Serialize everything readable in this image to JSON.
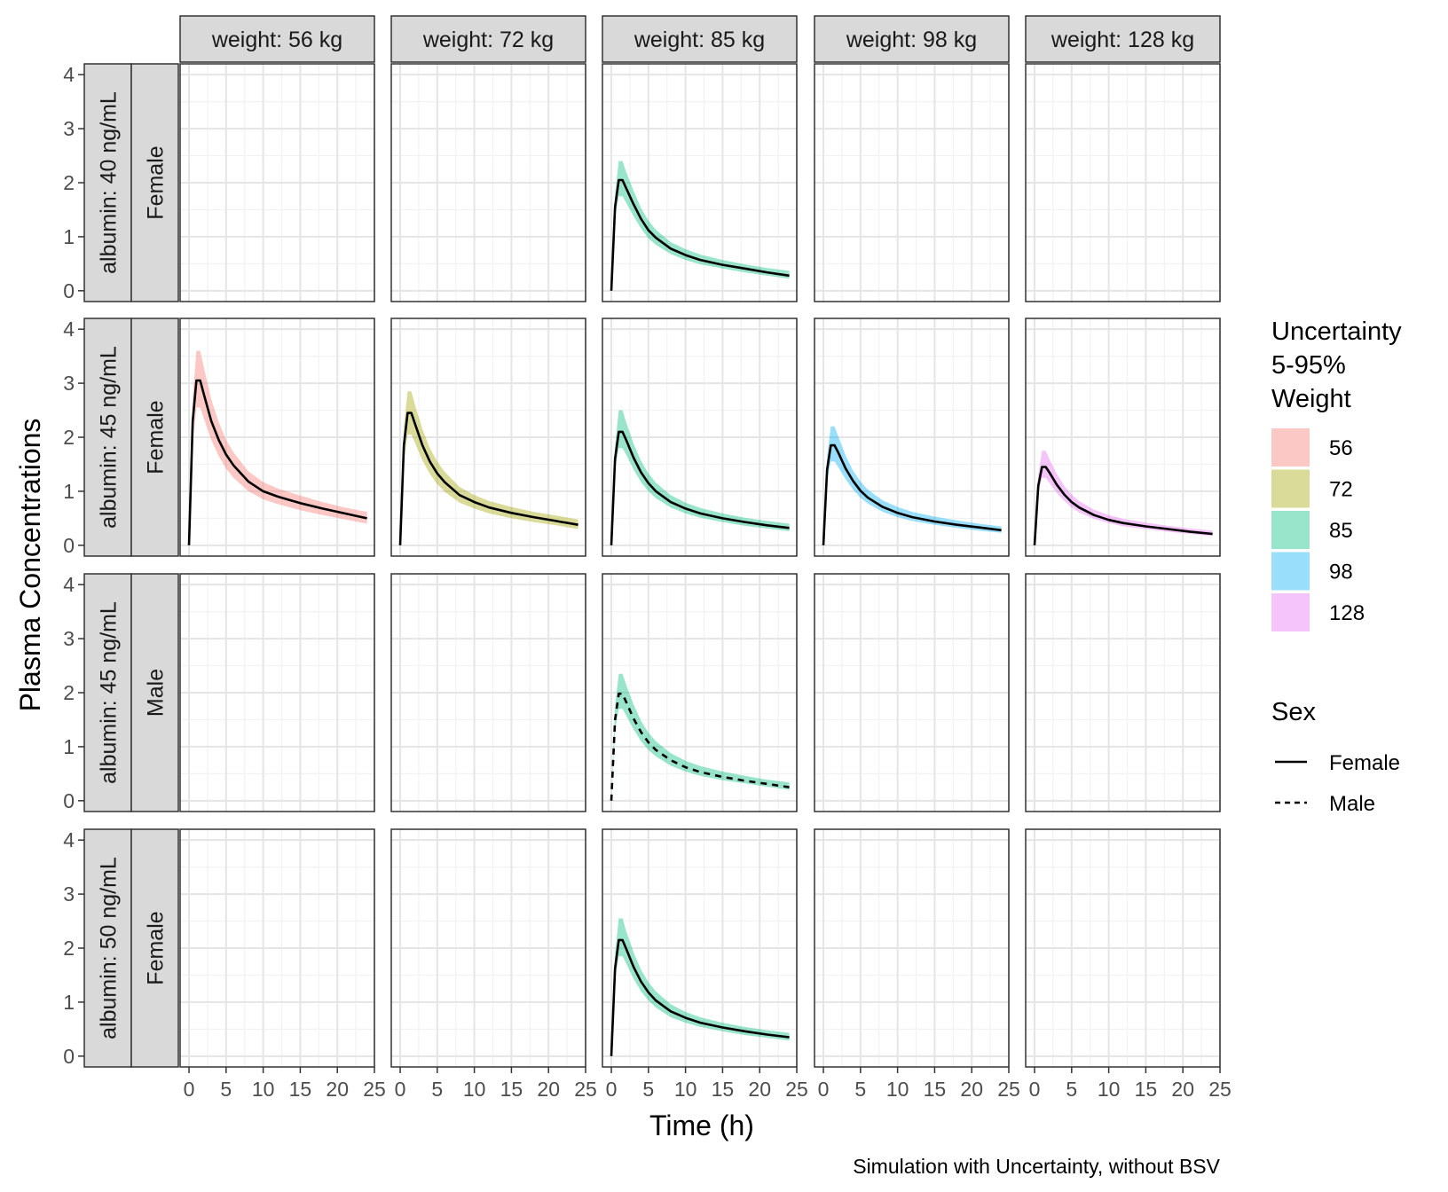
{
  "chart_data": {
    "type": "line",
    "xlabel": "Time (h)",
    "ylabel": "Plasma Concentrations",
    "caption": "Simulation with Uncertainty, without BSV",
    "xlim": [
      -1.2,
      25
    ],
    "ylim": [
      -0.2,
      4.2
    ],
    "x_ticks": [
      0,
      5,
      10,
      15,
      20,
      25
    ],
    "y_ticks": [
      0,
      1,
      2,
      3,
      4
    ],
    "grid": true,
    "facet_columns": [
      "weight: 56 kg",
      "weight: 72 kg",
      "weight: 85 kg",
      "weight: 98 kg",
      "weight: 128 kg"
    ],
    "facet_rows": [
      {
        "albumin": "albumin: 40 ng/mL",
        "sex": "Female"
      },
      {
        "albumin": "albumin: 45 ng/mL",
        "sex": "Female"
      },
      {
        "albumin": "albumin: 45 ng/mL",
        "sex": "Male"
      },
      {
        "albumin": "albumin: 50 ng/mL",
        "sex": "Female"
      }
    ],
    "legend_fill": {
      "title": [
        "Uncertainty",
        "5-95%",
        "Weight"
      ],
      "entries": [
        {
          "label": "56",
          "color": "#F8766D"
        },
        {
          "label": "72",
          "color": "#A3A500"
        },
        {
          "label": "85",
          "color": "#00BF7D"
        },
        {
          "label": "98",
          "color": "#00B0F6"
        },
        {
          "label": "128",
          "color": "#E76BF3"
        }
      ]
    },
    "legend_linetype": {
      "title": "Sex",
      "entries": [
        {
          "label": "Female",
          "linetype": "solid"
        },
        {
          "label": "Male",
          "linetype": "dashed"
        }
      ]
    },
    "legend_placement": "right",
    "series": [
      {
        "row": 0,
        "col": 2,
        "weight": "85",
        "sex": "Female",
        "x": [
          0,
          0.5,
          1,
          1.5,
          2,
          3,
          4,
          5,
          6,
          8,
          10,
          12,
          15,
          18,
          21,
          24
        ],
        "y": [
          0,
          1.55,
          2.05,
          2.05,
          1.9,
          1.6,
          1.33,
          1.12,
          0.98,
          0.78,
          0.66,
          0.57,
          0.48,
          0.41,
          0.34,
          0.28
        ],
        "lower": [
          0,
          1.35,
          1.75,
          1.75,
          1.63,
          1.38,
          1.15,
          0.97,
          0.85,
          0.68,
          0.57,
          0.49,
          0.41,
          0.34,
          0.28,
          0.22
        ],
        "upper": [
          0,
          1.8,
          2.4,
          2.4,
          2.2,
          1.85,
          1.53,
          1.3,
          1.13,
          0.9,
          0.77,
          0.67,
          0.57,
          0.49,
          0.42,
          0.37
        ]
      },
      {
        "row": 1,
        "col": 0,
        "weight": "56",
        "sex": "Female",
        "x": [
          0,
          0.5,
          1,
          1.5,
          2,
          3,
          4,
          5,
          6,
          8,
          10,
          12,
          15,
          18,
          21,
          24
        ],
        "y": [
          0,
          2.3,
          3.05,
          3.05,
          2.8,
          2.3,
          1.95,
          1.68,
          1.48,
          1.18,
          1.0,
          0.9,
          0.78,
          0.68,
          0.59,
          0.5
        ],
        "lower": [
          0,
          1.9,
          2.55,
          2.55,
          2.35,
          1.95,
          1.65,
          1.42,
          1.25,
          1.0,
          0.85,
          0.76,
          0.65,
          0.56,
          0.48,
          0.4
        ],
        "upper": [
          0,
          2.75,
          3.6,
          3.6,
          3.3,
          2.7,
          2.28,
          1.95,
          1.72,
          1.37,
          1.17,
          1.05,
          0.92,
          0.8,
          0.7,
          0.62
        ]
      },
      {
        "row": 1,
        "col": 1,
        "weight": "72",
        "sex": "Female",
        "x": [
          0,
          0.5,
          1,
          1.5,
          2,
          3,
          4,
          5,
          6,
          8,
          10,
          12,
          15,
          18,
          21,
          24
        ],
        "y": [
          0,
          1.85,
          2.45,
          2.45,
          2.25,
          1.85,
          1.55,
          1.33,
          1.17,
          0.93,
          0.8,
          0.7,
          0.6,
          0.52,
          0.45,
          0.38
        ],
        "lower": [
          0,
          1.55,
          2.05,
          2.05,
          1.9,
          1.57,
          1.32,
          1.13,
          0.99,
          0.79,
          0.68,
          0.59,
          0.5,
          0.43,
          0.37,
          0.3
        ],
        "upper": [
          0,
          2.2,
          2.85,
          2.85,
          2.6,
          2.15,
          1.8,
          1.55,
          1.36,
          1.08,
          0.93,
          0.82,
          0.71,
          0.62,
          0.55,
          0.48
        ]
      },
      {
        "row": 1,
        "col": 2,
        "weight": "85",
        "sex": "Female",
        "x": [
          0,
          0.5,
          1,
          1.5,
          2,
          3,
          4,
          5,
          6,
          8,
          10,
          12,
          15,
          18,
          21,
          24
        ],
        "y": [
          0,
          1.6,
          2.1,
          2.1,
          1.95,
          1.62,
          1.35,
          1.15,
          1.0,
          0.8,
          0.68,
          0.59,
          0.5,
          0.43,
          0.37,
          0.32
        ],
        "lower": [
          0,
          1.4,
          1.8,
          1.8,
          1.68,
          1.4,
          1.17,
          1.0,
          0.87,
          0.7,
          0.59,
          0.51,
          0.43,
          0.36,
          0.31,
          0.26
        ],
        "upper": [
          0,
          1.85,
          2.5,
          2.5,
          2.28,
          1.88,
          1.56,
          1.33,
          1.16,
          0.93,
          0.79,
          0.69,
          0.59,
          0.51,
          0.45,
          0.4
        ]
      },
      {
        "row": 1,
        "col": 3,
        "weight": "98",
        "sex": "Female",
        "x": [
          0,
          0.5,
          1,
          1.5,
          2,
          3,
          4,
          5,
          6,
          8,
          10,
          12,
          15,
          18,
          21,
          24
        ],
        "y": [
          0,
          1.4,
          1.85,
          1.85,
          1.72,
          1.42,
          1.19,
          1.01,
          0.88,
          0.71,
          0.6,
          0.52,
          0.44,
          0.38,
          0.33,
          0.28
        ],
        "lower": [
          0,
          1.2,
          1.55,
          1.55,
          1.45,
          1.22,
          1.03,
          0.88,
          0.77,
          0.62,
          0.52,
          0.45,
          0.38,
          0.32,
          0.27,
          0.23
        ],
        "upper": [
          0,
          1.65,
          2.2,
          2.2,
          2.02,
          1.66,
          1.38,
          1.18,
          1.03,
          0.83,
          0.71,
          0.62,
          0.53,
          0.46,
          0.4,
          0.35
        ]
      },
      {
        "row": 1,
        "col": 4,
        "weight": "128",
        "sex": "Female",
        "x": [
          0,
          0.5,
          1,
          1.5,
          2,
          3,
          4,
          5,
          6,
          8,
          10,
          12,
          15,
          18,
          21,
          24
        ],
        "y": [
          0,
          1.1,
          1.45,
          1.45,
          1.35,
          1.12,
          0.94,
          0.8,
          0.7,
          0.56,
          0.47,
          0.41,
          0.35,
          0.3,
          0.25,
          0.21
        ],
        "lower": [
          0,
          0.95,
          1.25,
          1.25,
          1.16,
          0.97,
          0.82,
          0.7,
          0.61,
          0.49,
          0.41,
          0.35,
          0.3,
          0.25,
          0.21,
          0.17
        ],
        "upper": [
          0,
          1.3,
          1.75,
          1.75,
          1.6,
          1.32,
          1.1,
          0.94,
          0.82,
          0.66,
          0.56,
          0.49,
          0.42,
          0.36,
          0.31,
          0.27
        ]
      },
      {
        "row": 2,
        "col": 2,
        "weight": "85",
        "sex": "Male",
        "x": [
          0,
          0.5,
          1,
          1.5,
          2,
          3,
          4,
          5,
          6,
          8,
          10,
          12,
          15,
          18,
          21,
          24
        ],
        "y": [
          0,
          1.5,
          1.98,
          1.98,
          1.83,
          1.52,
          1.27,
          1.08,
          0.94,
          0.75,
          0.62,
          0.53,
          0.44,
          0.37,
          0.31,
          0.25
        ],
        "lower": [
          0,
          1.3,
          1.7,
          1.7,
          1.58,
          1.32,
          1.1,
          0.94,
          0.82,
          0.65,
          0.54,
          0.46,
          0.38,
          0.32,
          0.26,
          0.2
        ],
        "upper": [
          0,
          1.75,
          2.35,
          2.35,
          2.15,
          1.78,
          1.48,
          1.26,
          1.1,
          0.88,
          0.74,
          0.64,
          0.54,
          0.46,
          0.39,
          0.34
        ]
      },
      {
        "row": 3,
        "col": 2,
        "weight": "85",
        "sex": "Female",
        "x": [
          0,
          0.5,
          1,
          1.5,
          2,
          3,
          4,
          5,
          6,
          8,
          10,
          12,
          15,
          18,
          21,
          24
        ],
        "y": [
          0,
          1.62,
          2.15,
          2.15,
          1.99,
          1.65,
          1.38,
          1.18,
          1.03,
          0.83,
          0.71,
          0.62,
          0.53,
          0.46,
          0.4,
          0.35
        ],
        "lower": [
          0,
          1.42,
          1.85,
          1.85,
          1.72,
          1.43,
          1.2,
          1.03,
          0.9,
          0.72,
          0.62,
          0.54,
          0.46,
          0.39,
          0.34,
          0.29
        ],
        "upper": [
          0,
          1.9,
          2.55,
          2.55,
          2.32,
          1.92,
          1.6,
          1.37,
          1.2,
          0.96,
          0.82,
          0.72,
          0.62,
          0.54,
          0.48,
          0.43
        ]
      }
    ]
  }
}
